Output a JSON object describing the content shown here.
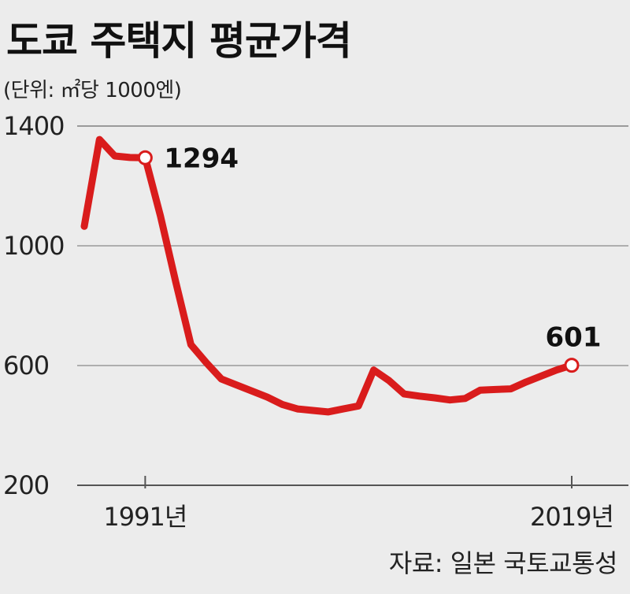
{
  "header": {
    "title": "도쿄 주택지 평균가격",
    "unit": "(단위: ㎡당 1000엔)"
  },
  "footer": {
    "source": "자료: 일본 국토교통성"
  },
  "colors": {
    "line": "#d91c1c",
    "grid": "#9a9a9a",
    "background": "#ececec"
  },
  "chart_data": {
    "type": "line",
    "title": "도쿄 주택지 평균가격",
    "unit": "(단위: ㎡당 1000엔)",
    "x_tick_labels": [
      "1991년",
      "2019년"
    ],
    "y_ticks": [
      200,
      600,
      1000,
      1400
    ],
    "y_tick_labels": [
      "200",
      "600",
      "1000",
      "1400"
    ],
    "ylim": [
      200,
      1400
    ],
    "grid": true,
    "x": [
      1987,
      1988,
      1989,
      1990,
      1991,
      1992,
      1993,
      1994,
      1995,
      1996,
      1997,
      1998,
      1999,
      2000,
      2001,
      2002,
      2003,
      2004,
      2005,
      2006,
      2007,
      2008,
      2009,
      2010,
      2011,
      2012,
      2013,
      2014,
      2015,
      2016,
      2017,
      2018,
      2019
    ],
    "series": [
      {
        "values": [
          1065,
          1355,
          1300,
          1295,
          1294,
          1100,
          880,
          670,
          610,
          555,
          535,
          515,
          495,
          470,
          455,
          450,
          445,
          455,
          465,
          585,
          550,
          505,
          498,
          492,
          485,
          490,
          518,
          520,
          522,
          545,
          565,
          585,
          601
        ]
      }
    ],
    "annotations": [
      {
        "x": 1991,
        "value": 1294,
        "label": "1294"
      },
      {
        "x": 2019,
        "value": 601,
        "label": "601"
      }
    ]
  }
}
